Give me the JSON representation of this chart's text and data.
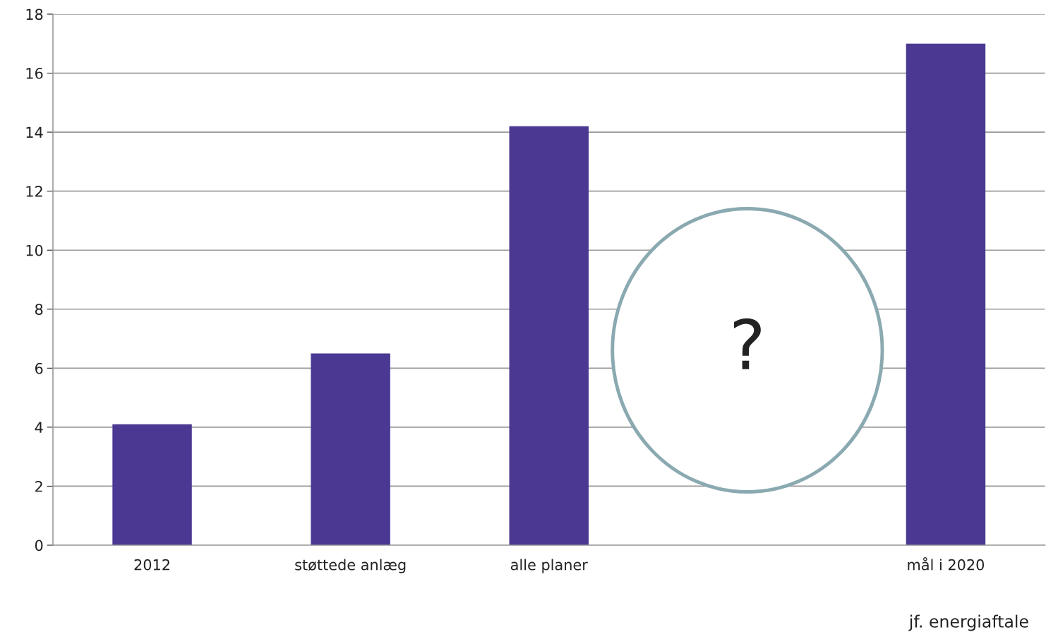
{
  "chart_data": {
    "type": "bar",
    "categories": [
      "2012",
      "støttede anlæg",
      "alle planer",
      null,
      "mål i 2020"
    ],
    "values": [
      4.1,
      6.5,
      14.2,
      null,
      17.0
    ],
    "color": "#4b3892",
    "ylim": [
      0,
      18
    ],
    "yticks": [
      0,
      2,
      4,
      6,
      8,
      10,
      12,
      14,
      16,
      18
    ],
    "grid": "y",
    "annotations": [
      "?",
      "jf. energiaftale"
    ]
  }
}
